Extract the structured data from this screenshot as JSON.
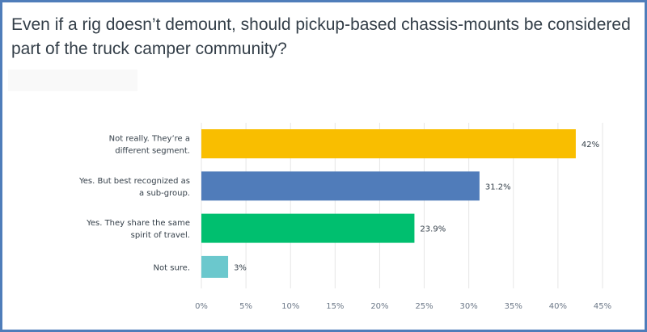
{
  "chart_data": {
    "type": "bar",
    "orientation": "horizontal",
    "title": "Even if a rig doesn’t demount, should pickup-based chassis-mounts be considered part of the truck camper community?",
    "categories": [
      [
        "Not really. They’re a",
        "different segment."
      ],
      [
        "Yes. But best recognized as",
        "a sub-group."
      ],
      [
        "Yes. They share the same",
        "spirit of travel."
      ],
      [
        "Not sure."
      ]
    ],
    "values": [
      42,
      31.2,
      23.9,
      3
    ],
    "value_labels": [
      "42%",
      "31.2%",
      "23.9%",
      "3%"
    ],
    "colors": [
      "#f9be00",
      "#507cba",
      "#00bf6f",
      "#6bc8cd"
    ],
    "xticks": [
      0,
      5,
      10,
      15,
      20,
      25,
      30,
      35,
      40,
      45
    ],
    "xtick_labels": [
      "0%",
      "5%",
      "10%",
      "15%",
      "20%",
      "25%",
      "30%",
      "35%",
      "40%",
      "45%"
    ],
    "xlim": [
      0,
      45
    ],
    "grid": true,
    "xlabel": "",
    "ylabel": ""
  }
}
